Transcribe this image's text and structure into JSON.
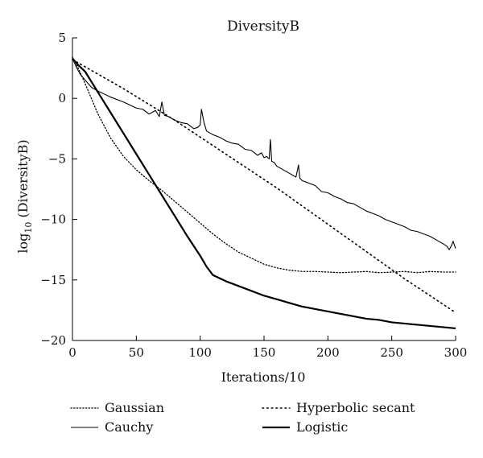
{
  "chart_data": {
    "type": "line",
    "title": "DiversityB",
    "xlabel": "Iterations/10",
    "ylabel": "log",
    "ylabel_sub": "10",
    "ylabel_rest": " (DiversityB)",
    "xlim": [
      0,
      300
    ],
    "ylim": [
      -20,
      5
    ],
    "xticks": [
      0,
      50,
      100,
      150,
      200,
      250,
      300
    ],
    "yticks": [
      5,
      0,
      -5,
      -10,
      -15,
      -20
    ],
    "grid": false,
    "legend_position": "bottom",
    "series": [
      {
        "name": "Gaussian",
        "style": "dotted-fine",
        "x": [
          0,
          5,
          10,
          20,
          30,
          40,
          50,
          60,
          70,
          80,
          90,
          100,
          110,
          120,
          130,
          140,
          150,
          160,
          170,
          180,
          190,
          200,
          210,
          220,
          230,
          240,
          250,
          260,
          270,
          280,
          290,
          300
        ],
        "y": [
          3.4,
          2.4,
          1.2,
          -1.3,
          -3.3,
          -4.8,
          -5.9,
          -6.8,
          -7.6,
          -8.5,
          -9.4,
          -10.3,
          -11.2,
          -12.0,
          -12.7,
          -13.2,
          -13.7,
          -14.0,
          -14.2,
          -14.3,
          -14.3,
          -14.35,
          -14.4,
          -14.35,
          -14.3,
          -14.4,
          -14.35,
          -14.3,
          -14.4,
          -14.3,
          -14.35,
          -14.35
        ]
      },
      {
        "name": "Hyperbolic secant",
        "style": "dotted-coarse",
        "x": [
          0,
          5,
          10,
          20,
          40,
          60,
          80,
          100,
          120,
          140,
          160,
          180,
          200,
          220,
          240,
          260,
          280,
          300
        ],
        "y": [
          3.2,
          2.9,
          2.6,
          2.0,
          0.8,
          -0.5,
          -1.8,
          -3.2,
          -4.6,
          -6.0,
          -7.4,
          -8.9,
          -10.4,
          -11.9,
          -13.4,
          -14.9,
          -16.3,
          -17.7
        ]
      },
      {
        "name": "Cauchy",
        "style": "solid-thin",
        "x": [
          0,
          3,
          6,
          10,
          15,
          20,
          30,
          40,
          50,
          55,
          60,
          65,
          68,
          70,
          72,
          75,
          80,
          85,
          90,
          95,
          98,
          100,
          101,
          103,
          105,
          110,
          115,
          120,
          125,
          130,
          135,
          140,
          145,
          148,
          150,
          152,
          154,
          155,
          156,
          158,
          160,
          165,
          170,
          175,
          177,
          178,
          180,
          185,
          190,
          195,
          200,
          205,
          210,
          215,
          220,
          225,
          230,
          235,
          240,
          245,
          250,
          255,
          260,
          265,
          270,
          275,
          280,
          285,
          290,
          293,
          295,
          297,
          298,
          300
        ],
        "y": [
          3.3,
          2.6,
          2.0,
          1.5,
          0.9,
          0.6,
          0.1,
          -0.3,
          -0.8,
          -0.9,
          -1.3,
          -1.0,
          -1.5,
          -0.3,
          -1.4,
          -1.5,
          -1.8,
          -2.0,
          -2.1,
          -2.5,
          -2.4,
          -2.2,
          -0.9,
          -2.0,
          -2.7,
          -3.0,
          -3.2,
          -3.5,
          -3.7,
          -3.8,
          -4.2,
          -4.3,
          -4.7,
          -4.5,
          -4.9,
          -4.8,
          -5.0,
          -3.4,
          -5.2,
          -5.3,
          -5.6,
          -5.9,
          -6.2,
          -6.5,
          -5.5,
          -6.6,
          -6.8,
          -7.0,
          -7.2,
          -7.7,
          -7.8,
          -8.1,
          -8.3,
          -8.6,
          -8.7,
          -9.0,
          -9.3,
          -9.5,
          -9.7,
          -10.0,
          -10.2,
          -10.4,
          -10.6,
          -10.9,
          -11.0,
          -11.2,
          -11.4,
          -11.7,
          -12.0,
          -12.2,
          -12.5,
          -12.1,
          -11.8,
          -12.4
        ]
      },
      {
        "name": "Logistic",
        "style": "solid-thick",
        "x": [
          0,
          5,
          10,
          20,
          30,
          40,
          50,
          60,
          70,
          80,
          90,
          100,
          105,
          110,
          120,
          130,
          140,
          150,
          160,
          170,
          180,
          190,
          200,
          210,
          220,
          230,
          240,
          250,
          260,
          270,
          280,
          290,
          300
        ],
        "y": [
          3.3,
          2.7,
          2.2,
          0.5,
          -1.2,
          -2.9,
          -4.6,
          -6.3,
          -8.0,
          -9.7,
          -11.4,
          -13.0,
          -13.9,
          -14.6,
          -15.1,
          -15.5,
          -15.9,
          -16.3,
          -16.6,
          -16.9,
          -17.2,
          -17.4,
          -17.6,
          -17.8,
          -18.0,
          -18.2,
          -18.3,
          -18.5,
          -18.6,
          -18.7,
          -18.8,
          -18.9,
          -19.0
        ]
      }
    ]
  }
}
